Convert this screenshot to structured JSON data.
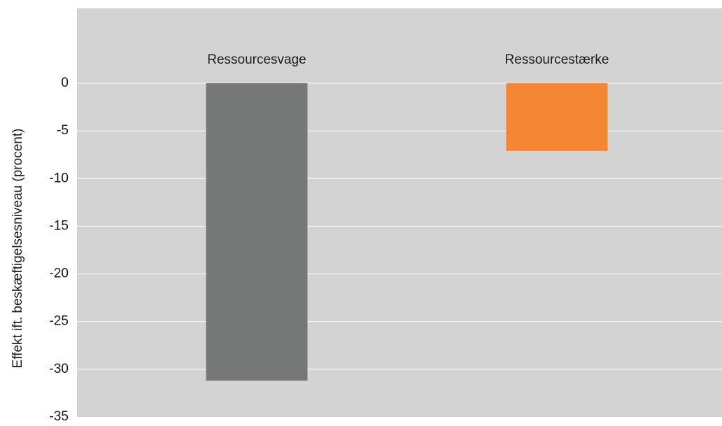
{
  "chart_data": {
    "type": "bar",
    "title": "",
    "xlabel": "",
    "ylabel": "Effekt ift. beskæftigelsesniveau (procent)",
    "categories": [
      "Ressourcesvage",
      "Ressourcestærke"
    ],
    "values": [
      -31.2,
      -7.1
    ],
    "ylim": [
      -35,
      0
    ],
    "yticks": [
      0,
      -5,
      -10,
      -15,
      -20,
      -25,
      -30,
      -35
    ],
    "ytick_labels": [
      "0",
      "-5",
      "-10",
      "-15",
      "-20",
      "-25",
      "-30",
      "-35"
    ],
    "grid": true,
    "legend": "none",
    "category_label_position": "top",
    "colors": {
      "plot_background": "#d3d3d3",
      "gridline": "#ffffff",
      "bars": [
        "#767878",
        "#f58634"
      ]
    }
  }
}
